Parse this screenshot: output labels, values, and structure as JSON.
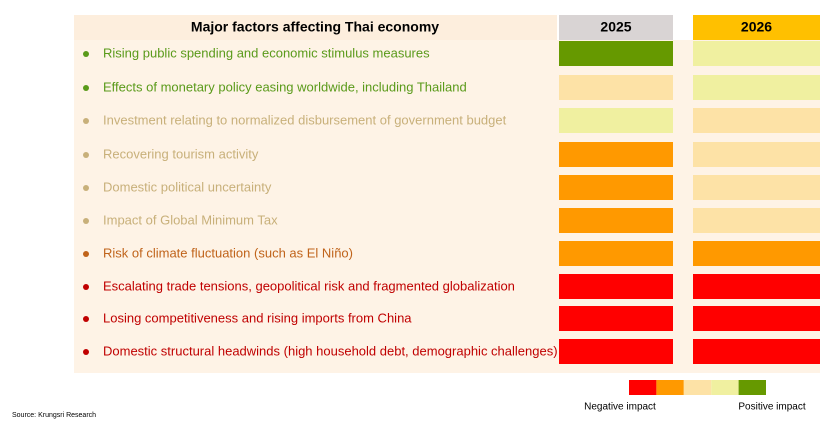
{
  "header": {
    "title": "Major factors affecting Thai economy",
    "columns": [
      {
        "label": "2025",
        "color": "#d9d4d4"
      },
      {
        "label": "2026",
        "color": "#ffc000"
      }
    ]
  },
  "rows": [
    {
      "label": "Rising public spending and economic stimulus measures",
      "color": "#5a9a1a",
      "cells": [
        "#669900",
        "#f0f0a0"
      ]
    },
    {
      "label": "Effects of monetary policy easing worldwide, including Thailand",
      "color": "#5a9a1a",
      "cells": [
        "#fde2a6",
        "#f0f0a0"
      ]
    },
    {
      "label": "Investment relating to normalized disbursement of government budget",
      "color": "#c8b07a",
      "cells": [
        "#f0f0a0",
        "#fde2a6"
      ]
    },
    {
      "label": "Recovering tourism activity",
      "color": "#c8b07a",
      "cells": [
        "#ff9900",
        "#fde2a6"
      ]
    },
    {
      "label": "Domestic political uncertainty",
      "color": "#c8b07a",
      "cells": [
        "#ff9900",
        "#fde2a6"
      ]
    },
    {
      "label": "Impact of Global Minimum Tax",
      "color": "#c8b07a",
      "cells": [
        "#ff9900",
        "#fde2a6"
      ]
    },
    {
      "label": "Risk of climate fluctuation (such as El Niño)",
      "color": "#c0631a",
      "cells": [
        "#ff9900",
        "#ff9900"
      ]
    },
    {
      "label": "Escalating trade tensions, geopolitical risk and fragmented globalization",
      "color": "#c00000",
      "cells": [
        "#ff0000",
        "#ff0000"
      ]
    },
    {
      "label": "Losing competitiveness and rising imports from China",
      "color": "#c00000",
      "cells": [
        "#ff0000",
        "#ff0000"
      ]
    },
    {
      "label": "Domestic structural headwinds (high household debt, demographic challenges)",
      "color": "#c00000",
      "cells": [
        "#ff0000",
        "#ff0000"
      ]
    }
  ],
  "legend": {
    "colors": [
      "#ff0000",
      "#ff9900",
      "#fde2a6",
      "#f0f0a0",
      "#669900"
    ],
    "negative": "Negative impact",
    "positive": "Positive impact"
  },
  "source": "Source: Krungsri Research"
}
